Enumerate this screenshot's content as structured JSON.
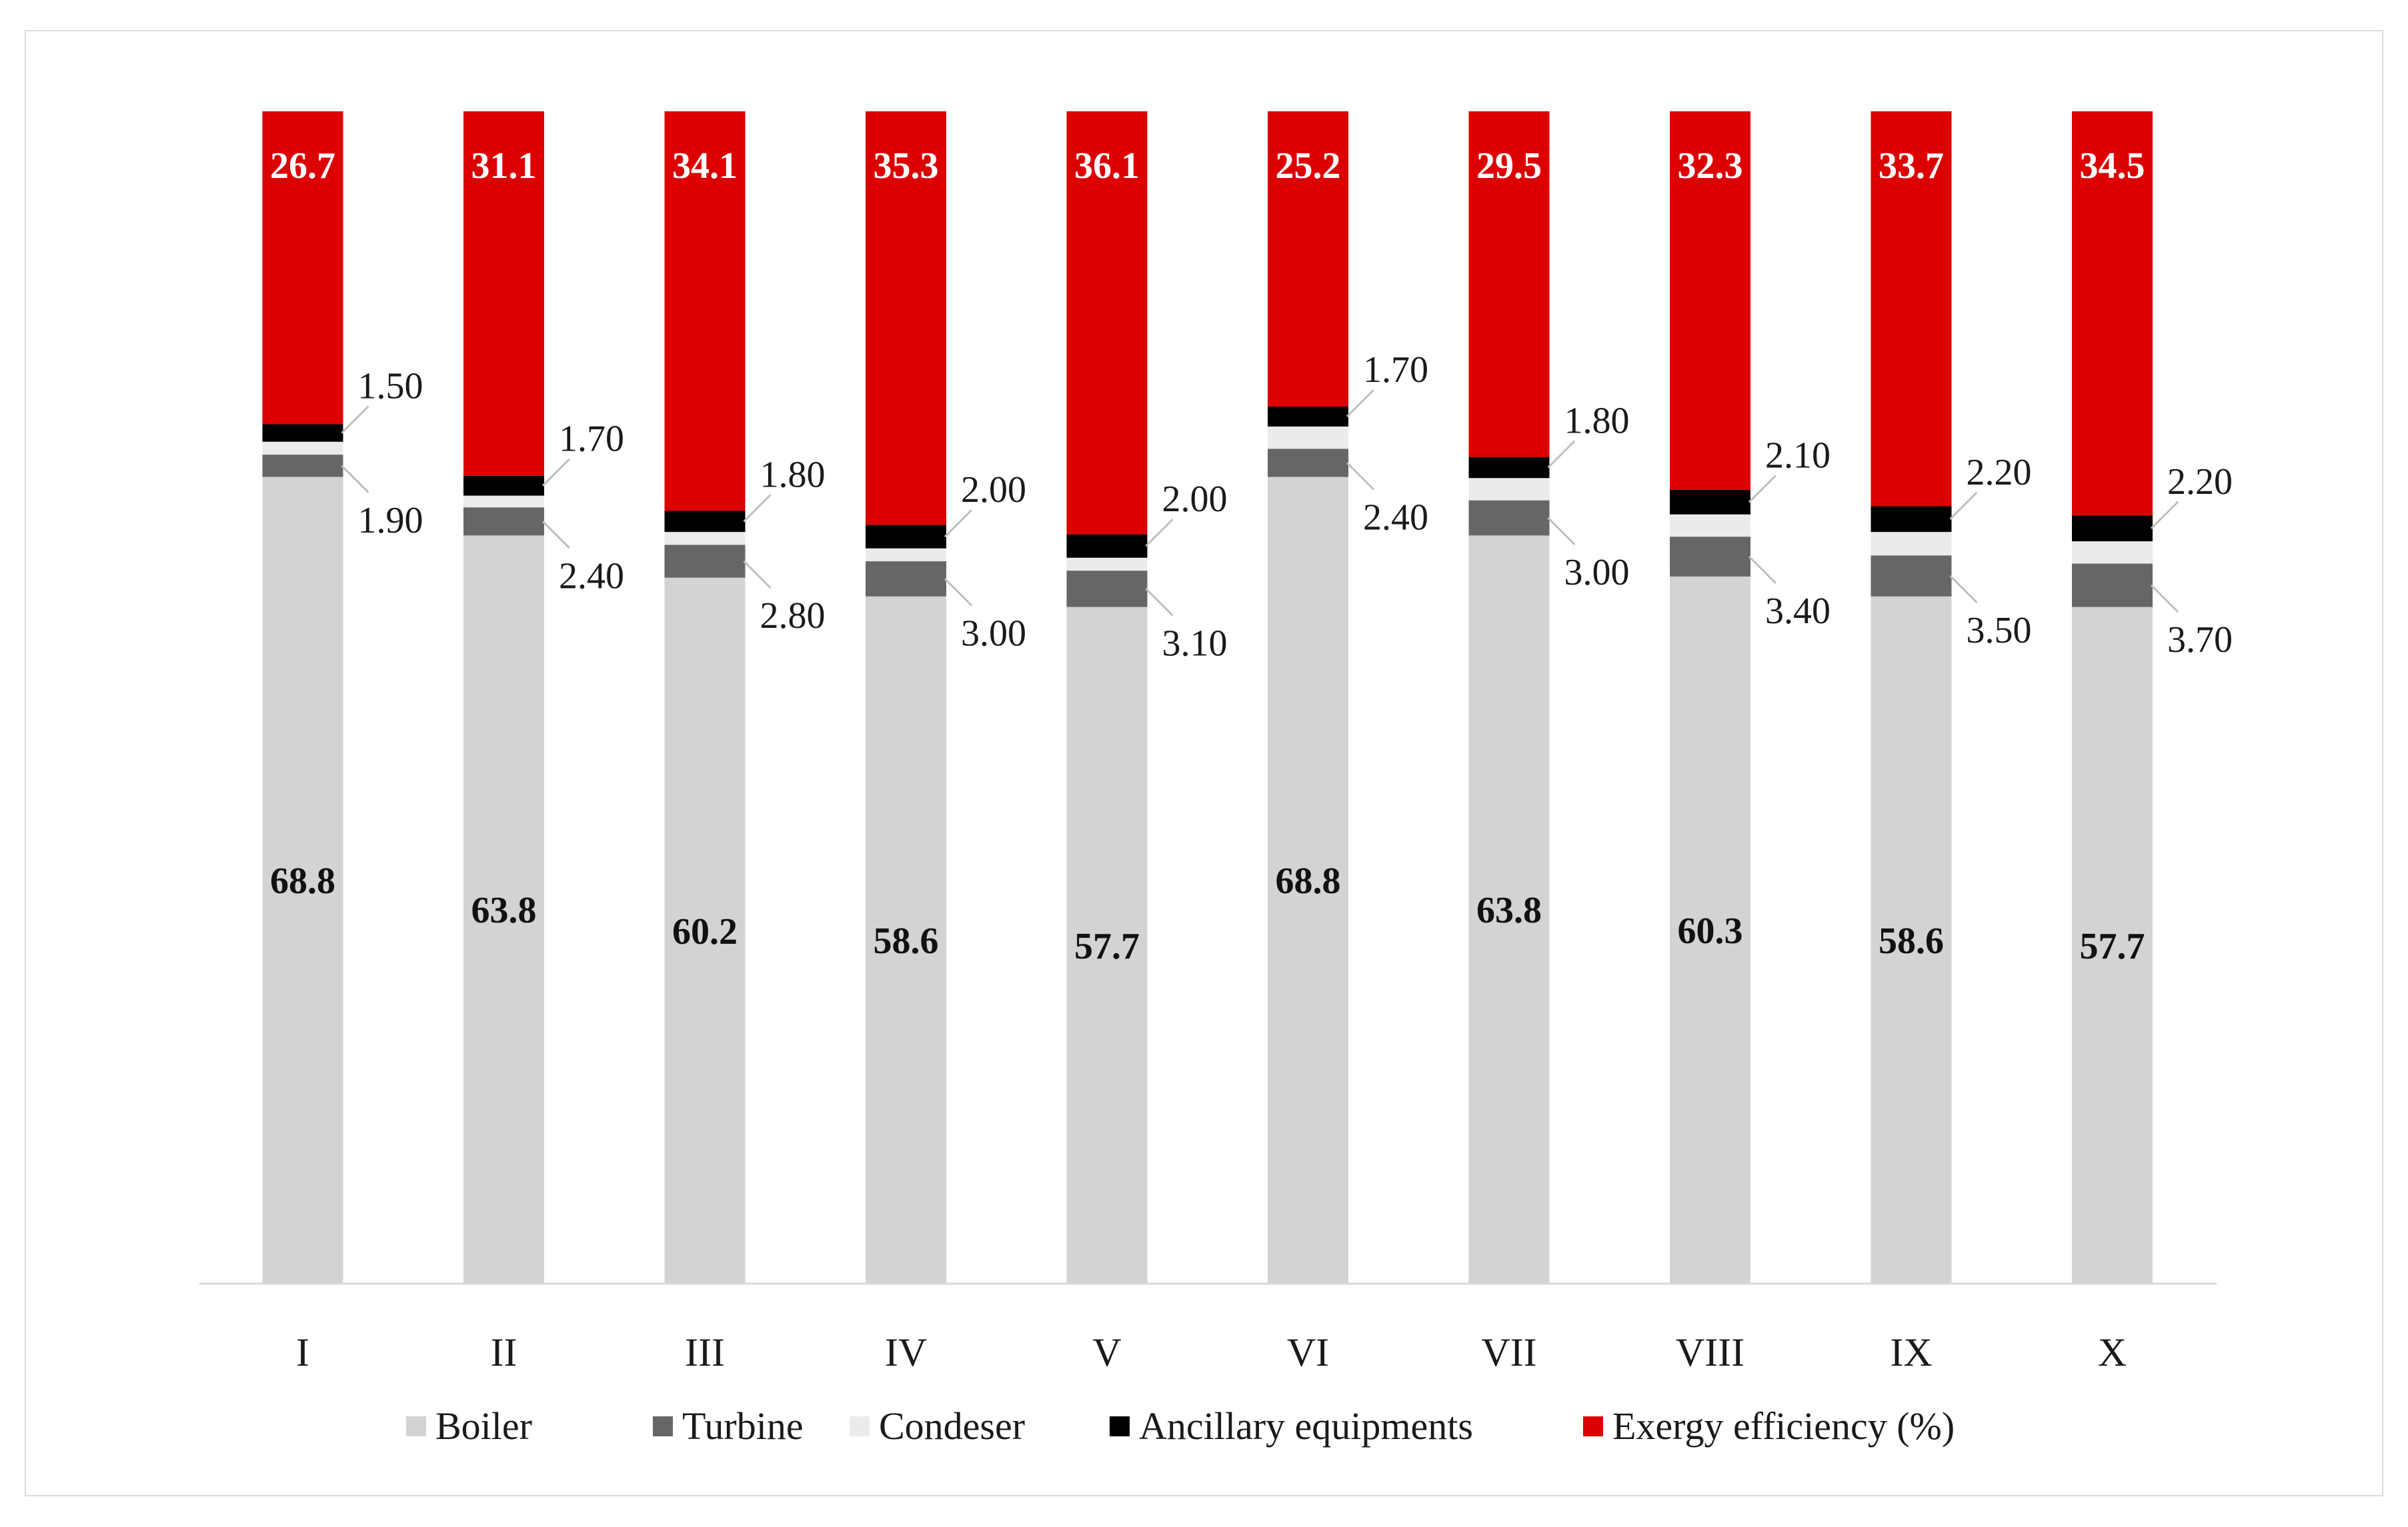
{
  "chart_data": {
    "type": "stacked-bar",
    "title": "",
    "xlabel": "",
    "ylabel": "",
    "categories": [
      "I",
      "II",
      "III",
      "IV",
      "V",
      "VI",
      "VII",
      "VIII",
      "IX",
      "X"
    ],
    "series": [
      {
        "name": "Boiler",
        "color": "#d3d3d3",
        "values": [
          68.8,
          63.8,
          60.2,
          58.6,
          57.7,
          68.8,
          63.8,
          60.3,
          58.6,
          57.7
        ],
        "labels": [
          "68.8",
          "63.8",
          "60.2",
          "58.6",
          "57.7",
          "68.8",
          "63.8",
          "60.3",
          "58.6",
          "57.7"
        ]
      },
      {
        "name": "Turbine",
        "color": "#666666",
        "values": [
          1.9,
          2.4,
          2.8,
          3.0,
          3.1,
          2.4,
          3.0,
          3.4,
          3.5,
          3.7
        ],
        "labels": [
          "1.90",
          "2.40",
          "2.80",
          "3.00",
          "3.10",
          "2.40",
          "3.00",
          "3.40",
          "3.50",
          "3.70"
        ]
      },
      {
        "name": "Condeser",
        "color": "#ebebeb",
        "values": [
          1.1,
          1.0,
          1.1,
          1.1,
          1.1,
          1.9,
          1.9,
          1.9,
          2.0,
          1.9
        ],
        "labels": []
      },
      {
        "name": "Ancillary equipments",
        "color": "#000000",
        "values": [
          1.5,
          1.7,
          1.8,
          2.0,
          2.0,
          1.7,
          1.8,
          2.1,
          2.2,
          2.2
        ],
        "labels": [
          "1.50",
          "1.70",
          "1.80",
          "2.00",
          "2.00",
          "1.70",
          "1.80",
          "2.10",
          "2.20",
          "2.20"
        ]
      },
      {
        "name": "Exergy efficiency (%)",
        "color": "#dd0000",
        "values": [
          26.7,
          31.1,
          34.1,
          35.3,
          36.1,
          25.2,
          29.5,
          32.3,
          33.7,
          34.5
        ],
        "labels": [
          "26.7",
          "31.1",
          "34.1",
          "35.3",
          "36.1",
          "25.2",
          "29.5",
          "32.3",
          "33.7",
          "34.5"
        ]
      }
    ],
    "ylim": [
      0,
      100
    ],
    "grid": false,
    "legend_position": "bottom"
  }
}
